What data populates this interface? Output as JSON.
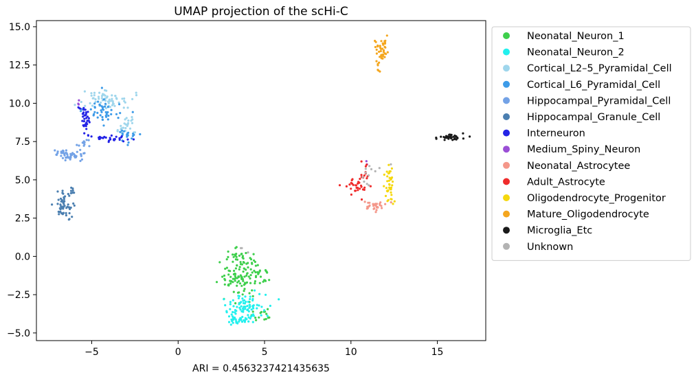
{
  "chart_data": {
    "type": "scatter",
    "title": "UMAP projection of the scHi-C",
    "xlabel": "ARI = 0.4563237421435635",
    "ylabel": "",
    "xlim": [
      -8.2,
      17.8
    ],
    "ylim": [
      -5.5,
      15.4
    ],
    "xticks": [
      -5,
      0,
      5,
      10,
      15
    ],
    "xtick_labels": [
      "−5",
      "0",
      "5",
      "10",
      "15"
    ],
    "yticks": [
      -5.0,
      -2.5,
      0.0,
      2.5,
      5.0,
      7.5,
      10.0,
      12.5,
      15.0
    ],
    "ytick_labels": [
      "−5.0",
      "−2.5",
      "0.0",
      "2.5",
      "5.0",
      "7.5",
      "10.0",
      "12.5",
      "15.0"
    ],
    "grid": false,
    "legend_position": "outside-right",
    "series": [
      {
        "name": "Neonatal_Neuron_1",
        "color": "#3ecf4c",
        "clusters": [
          {
            "cx": 3.7,
            "cy": -1.2,
            "sx": 0.55,
            "sy": 0.9,
            "n": 110
          },
          {
            "cx": 2.9,
            "cy": -1.6,
            "sx": 0.35,
            "sy": 0.2,
            "n": 15
          },
          {
            "cx": 4.8,
            "cy": -3.8,
            "sx": 0.4,
            "sy": 0.25,
            "n": 14
          },
          {
            "cx": 5.0,
            "cy": -1.2,
            "sx": 0.3,
            "sy": 0.3,
            "n": 10
          },
          {
            "cx": 3.4,
            "cy": 0.2,
            "sx": 0.25,
            "sy": 0.2,
            "n": 10
          }
        ]
      },
      {
        "name": "Neonatal_Neuron_2",
        "color": "#22f0ee",
        "clusters": [
          {
            "cx": 3.9,
            "cy": -3.4,
            "sx": 0.55,
            "sy": 0.55,
            "n": 95
          },
          {
            "cx": 3.6,
            "cy": -4.3,
            "sx": 0.3,
            "sy": 0.15,
            "n": 15
          }
        ]
      },
      {
        "name": "Cortical_L2–5_Pyramidal_Cell",
        "color": "#9fd6ec",
        "clusters": [
          {
            "cx": -4.0,
            "cy": 10.2,
            "sx": 0.75,
            "sy": 0.35,
            "n": 65
          },
          {
            "cx": -3.0,
            "cy": 8.6,
            "sx": 0.35,
            "sy": 0.35,
            "n": 25
          }
        ]
      },
      {
        "name": "Cortical_L6_Pyramidal_Cell",
        "color": "#3d9be8",
        "clusters": [
          {
            "cx": -4.3,
            "cy": 9.4,
            "sx": 0.55,
            "sy": 0.55,
            "n": 45
          },
          {
            "cx": -2.9,
            "cy": 7.9,
            "sx": 0.3,
            "sy": 0.25,
            "n": 20
          }
        ]
      },
      {
        "name": "Hippocampal_Pyramidal_Cell",
        "color": "#73a2e6",
        "clusters": [
          {
            "cx": -6.2,
            "cy": 6.6,
            "sx": 0.4,
            "sy": 0.18,
            "n": 40
          },
          {
            "cx": -6.8,
            "cy": 6.8,
            "sx": 0.2,
            "sy": 0.1,
            "n": 10
          },
          {
            "cx": -5.4,
            "cy": 7.3,
            "sx": 0.25,
            "sy": 0.25,
            "n": 12
          }
        ]
      },
      {
        "name": "Hippocampal_Granule_Cell",
        "color": "#4b7fb0",
        "clusters": [
          {
            "cx": -6.6,
            "cy": 3.3,
            "sx": 0.28,
            "sy": 0.4,
            "n": 55
          },
          {
            "cx": -6.2,
            "cy": 4.2,
            "sx": 0.12,
            "sy": 0.25,
            "n": 8
          }
        ]
      },
      {
        "name": "Interneuron",
        "color": "#2323e6",
        "clusters": [
          {
            "cx": -5.4,
            "cy": 8.8,
            "sx": 0.15,
            "sy": 0.45,
            "n": 30
          },
          {
            "cx": -3.8,
            "cy": 7.7,
            "sx": 0.55,
            "sy": 0.12,
            "n": 28
          },
          {
            "cx": -5.6,
            "cy": 9.6,
            "sx": 0.15,
            "sy": 0.2,
            "n": 6
          }
        ]
      },
      {
        "name": "Medium_Spiny_Neuron",
        "color": "#9b4fd6",
        "clusters": [
          {
            "cx": -5.8,
            "cy": 10.0,
            "sx": 0.08,
            "sy": 0.1,
            "n": 3
          },
          {
            "cx": 11.0,
            "cy": 6.1,
            "sx": 0.1,
            "sy": 0.1,
            "n": 2
          }
        ]
      },
      {
        "name": "Neonatal_Astrocytee",
        "color": "#f4978a",
        "clusters": [
          {
            "cx": 11.3,
            "cy": 3.3,
            "sx": 0.35,
            "sy": 0.15,
            "n": 30
          }
        ]
      },
      {
        "name": "Adult_Astrocyte",
        "color": "#ef2b2b",
        "clusters": [
          {
            "cx": 10.3,
            "cy": 4.7,
            "sx": 0.35,
            "sy": 0.3,
            "n": 32
          },
          {
            "cx": 10.8,
            "cy": 5.6,
            "sx": 0.12,
            "sy": 0.3,
            "n": 8
          }
        ]
      },
      {
        "name": "Oligodendrocyte_Progenitor",
        "color": "#f5d80e",
        "clusters": [
          {
            "cx": 12.2,
            "cy": 4.8,
            "sx": 0.15,
            "sy": 0.6,
            "n": 35
          },
          {
            "cx": 12.3,
            "cy": 3.6,
            "sx": 0.12,
            "sy": 0.1,
            "n": 5
          }
        ]
      },
      {
        "name": "Mature_Oligodendrocyte",
        "color": "#f4a61e",
        "clusters": [
          {
            "cx": 11.8,
            "cy": 13.5,
            "sx": 0.18,
            "sy": 0.4,
            "n": 40
          },
          {
            "cx": 11.6,
            "cy": 12.6,
            "sx": 0.1,
            "sy": 0.25,
            "n": 8
          }
        ]
      },
      {
        "name": "Microglia_Etc",
        "color": "#1a1a1a",
        "clusters": [
          {
            "cx": 15.8,
            "cy": 7.8,
            "sx": 0.45,
            "sy": 0.1,
            "n": 35
          }
        ]
      },
      {
        "name": "Unknown",
        "color": "#b3b3b3",
        "clusters": [
          {
            "cx": 11.0,
            "cy": 5.3,
            "sx": 0.35,
            "sy": 0.6,
            "n": 12
          },
          {
            "cx": 3.7,
            "cy": 0.4,
            "sx": 0.2,
            "sy": 0.2,
            "n": 3
          }
        ]
      }
    ]
  }
}
